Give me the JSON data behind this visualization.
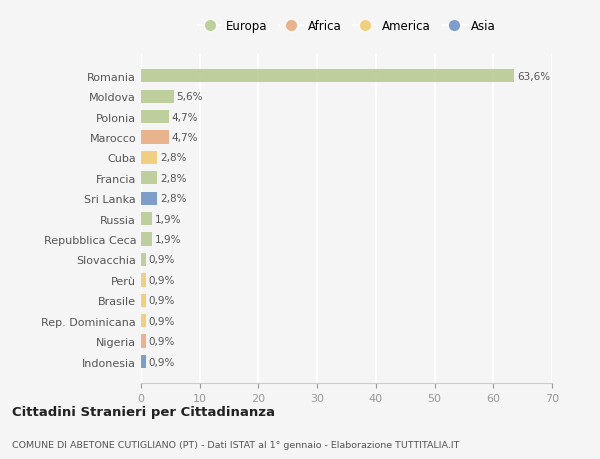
{
  "countries": [
    "Romania",
    "Moldova",
    "Polonia",
    "Marocco",
    "Cuba",
    "Francia",
    "Sri Lanka",
    "Russia",
    "Repubblica Ceca",
    "Slovacchia",
    "Perù",
    "Brasile",
    "Rep. Dominicana",
    "Nigeria",
    "Indonesia"
  ],
  "values": [
    63.6,
    5.6,
    4.7,
    4.7,
    2.8,
    2.8,
    2.8,
    1.9,
    1.9,
    0.9,
    0.9,
    0.9,
    0.9,
    0.9,
    0.9
  ],
  "labels": [
    "63,6%",
    "5,6%",
    "4,7%",
    "4,7%",
    "2,8%",
    "2,8%",
    "2,8%",
    "1,9%",
    "1,9%",
    "0,9%",
    "0,9%",
    "0,9%",
    "0,9%",
    "0,9%",
    "0,9%"
  ],
  "continents": [
    "Europa",
    "Europa",
    "Europa",
    "Africa",
    "America",
    "Europa",
    "Asia",
    "Europa",
    "Europa",
    "Europa",
    "America",
    "America",
    "America",
    "Africa",
    "Asia"
  ],
  "continent_colors": {
    "Europa": "#b5c98e",
    "Africa": "#e8a87c",
    "America": "#f0c96e",
    "Asia": "#6b8ec2"
  },
  "legend_order": [
    "Europa",
    "Africa",
    "America",
    "Asia"
  ],
  "bg_color": "#f5f5f5",
  "grid_color": "#ffffff",
  "title": "Cittadini Stranieri per Cittadinanza",
  "subtitle": "COMUNE DI ABETONE CUTIGLIANO (PT) - Dati ISTAT al 1° gennaio - Elaborazione TUTTITALIA.IT",
  "xlim": [
    0,
    70
  ],
  "xticks": [
    0,
    10,
    20,
    30,
    40,
    50,
    60,
    70
  ],
  "bar_height": 0.65,
  "label_fontsize": 7.5,
  "ytick_fontsize": 8,
  "xtick_fontsize": 8
}
